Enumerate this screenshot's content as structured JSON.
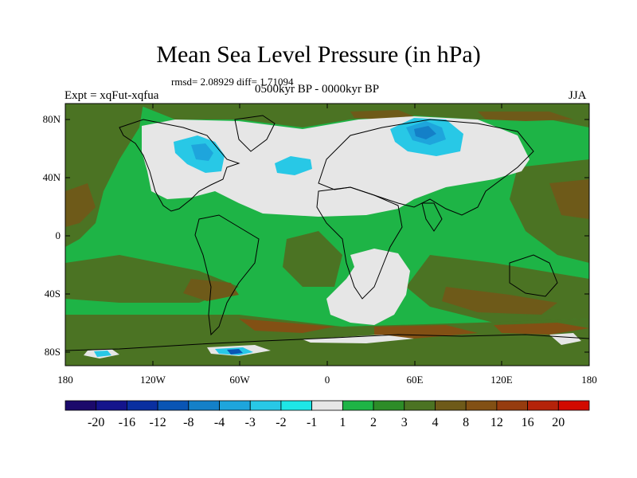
{
  "title": "Mean Sea Level Pressure (in hPa)",
  "stats": "rmsd= 2.08929 diff= 1.71094",
  "experiment": "Expt = xqFut-xqfua",
  "period": "0500kyr BP - 0000kyr BP",
  "season": "JJA",
  "y_ticks": [
    "80N",
    "40N",
    "0",
    "40S",
    "80S"
  ],
  "x_ticks": [
    "180",
    "120W",
    "60W",
    "0",
    "60E",
    "120E",
    "180"
  ],
  "colorbar": {
    "colors": [
      "#1b0a6b",
      "#14148c",
      "#0a2fa0",
      "#0a55b4",
      "#1480c8",
      "#1ea5dc",
      "#28c8e6",
      "#1ee6e6",
      "#e6e6e6",
      "#1eb446",
      "#2d8c28",
      "#4b7323",
      "#6e5a19",
      "#825014",
      "#963c0f",
      "#b4230a",
      "#d20a00"
    ],
    "labels": [
      "-20",
      "-16",
      "-12",
      "-8",
      "-4",
      "-3",
      "-2",
      "-1",
      "1",
      "2",
      "3",
      "4",
      "8",
      "12",
      "16",
      "20"
    ]
  }
}
